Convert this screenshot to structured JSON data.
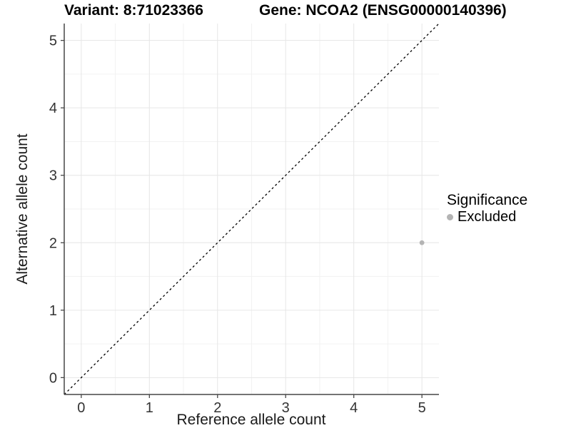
{
  "chart_data": {
    "type": "scatter",
    "title_variant": "Variant: 8:71023366",
    "title_gene": "Gene: NCOA2 (ENSG00000140396)",
    "xlabel": "Reference allele count",
    "ylabel": "Alternative allele count",
    "xlim": [
      -0.25,
      5.25
    ],
    "ylim": [
      -0.25,
      5.25
    ],
    "xticks": [
      0,
      1,
      2,
      3,
      4,
      5
    ],
    "yticks": [
      0,
      1,
      2,
      3,
      4,
      5
    ],
    "minor_ticks": [
      0.5,
      1.5,
      2.5,
      3.5,
      4.5
    ],
    "grid": true,
    "legend_position": "right",
    "reference_line": {
      "type": "abline",
      "slope": 1,
      "intercept": 0,
      "style": "dashed",
      "color": "#000000"
    },
    "series": [
      {
        "name": "Excluded",
        "color": "#b4b4b4",
        "points": [
          {
            "x": 5,
            "y": 2
          }
        ]
      }
    ],
    "legend": {
      "title": "Significance",
      "entries": [
        {
          "label": "Excluded",
          "color": "#b4b4b4"
        }
      ]
    },
    "colors": {
      "grid_major": "#e6e6e6",
      "grid_minor": "#f2f2f2",
      "axis": "#474747",
      "tick_text": "#333333",
      "panel_bg": "#ffffff"
    }
  }
}
